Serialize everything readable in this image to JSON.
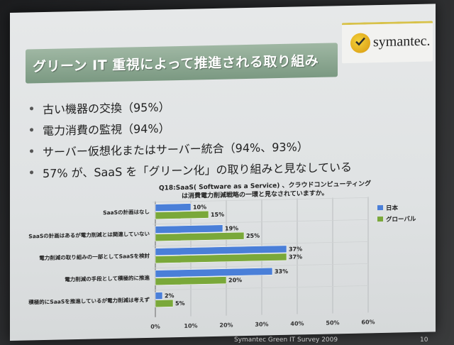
{
  "slide": {
    "title": "グリーン IT 重視によって推進される取り組み",
    "logo_text": "symantec.",
    "bullets": [
      "古い機器の交換（95%）",
      "電力消費の監視（94%）",
      "サーバー仮想化またはサーバー統合（94%、93%）",
      "57% が、SaaS を「グリーン化」の取り組みと見なしている"
    ],
    "footer": "Symantec Green IT Survey 2009",
    "page_number": "10"
  },
  "chart_data": {
    "type": "bar",
    "orientation": "horizontal",
    "title_line1": "Q18:SaaS( Software as a Service) 、クラウドコンピューティング",
    "title_line2": "は消費電力削減戦略の一環と見なされていますか。",
    "categories": [
      "SaaSの計画はなし",
      "SaaSの計画はあるが電力削減とは関連していない",
      "電力削減の取り組みの一部としてSaaSを検討",
      "電力削減の手段として積極的に推進",
      "積極的にSaaSを推進しているが電力削減は考えず"
    ],
    "series": [
      {
        "name": "日本",
        "color": "#4a7fd8",
        "values": [
          10,
          19,
          37,
          33,
          2
        ],
        "labels": [
          "10%",
          "19%",
          "37%",
          "33%",
          "2%"
        ]
      },
      {
        "name": "グローバル",
        "color": "#7aa83a",
        "values": [
          15,
          25,
          37,
          20,
          5
        ],
        "labels": [
          "15%",
          "25%",
          "37%",
          "20%",
          "5%"
        ]
      }
    ],
    "xlim": [
      0,
      60
    ],
    "xticks": [
      "0%",
      "10%",
      "20%",
      "30%",
      "40%",
      "50%",
      "60%"
    ],
    "grid": true,
    "legend_position": "right"
  }
}
